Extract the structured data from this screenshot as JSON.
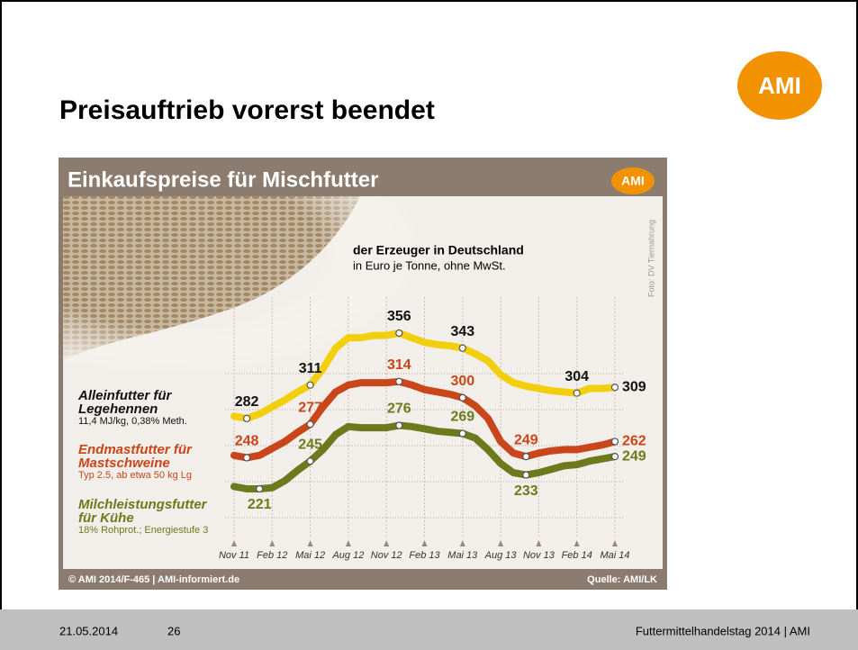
{
  "slide": {
    "title": "Preisauftrieb vorerst beendet",
    "logo": "AMI",
    "footer_date": "21.05.2014",
    "footer_page": "26",
    "footer_right": "Futtermittelhandelstag 2014 | AMI"
  },
  "chart_data": {
    "type": "line",
    "title": "Einkaufspreise für Mischfutter",
    "logo": "AMI",
    "subtitle": "der Erzeuger in Deutschland",
    "unit_note": "in Euro je Tonne, ohne MwSt.",
    "photo_credit": "Foto: DV Tiernahrung",
    "source_left": "© AMI 2014/F-465 | AMI-informiert.de",
    "source_right": "Quelle: AMI/LK",
    "categories": [
      "Nov 11",
      null,
      null,
      "Feb 12",
      null,
      null,
      "Mai 12",
      null,
      null,
      "Aug 12",
      null,
      null,
      "Nov 12",
      null,
      null,
      "Feb 13",
      null,
      null,
      "Mai 13",
      null,
      null,
      "Aug 13",
      null,
      null,
      "Nov 13",
      null,
      null,
      "Feb 14",
      null,
      null,
      "Mai 14"
    ],
    "series": [
      {
        "name": "Alleinfutter für Legehennen",
        "note": "11,4 MJ/kg, 0,38% Meth.",
        "color": "#f2cf0c",
        "values": [
          284,
          282,
          286,
          292,
          298,
          305,
          311,
          325,
          343,
          352,
          352,
          354,
          354,
          356,
          352,
          348,
          346,
          345,
          343,
          338,
          332,
          320,
          313,
          310,
          308,
          306,
          305,
          304,
          308,
          308,
          309
        ],
        "value_labels": [
          null,
          "282",
          null,
          null,
          null,
          null,
          "311",
          null,
          null,
          null,
          null,
          null,
          null,
          "356",
          null,
          null,
          null,
          null,
          "343",
          null,
          null,
          null,
          null,
          null,
          null,
          null,
          null,
          "304",
          null,
          null,
          "309"
        ]
      },
      {
        "name": "Endmastfutter für Mastschweine",
        "note": "Typ 2.5, ab etwa 50 kg Lg",
        "color": "#c8461a",
        "values": [
          250,
          248,
          250,
          256,
          262,
          270,
          277,
          292,
          305,
          311,
          313,
          313,
          313,
          314,
          311,
          307,
          305,
          303,
          300,
          293,
          282,
          262,
          252,
          249,
          252,
          254,
          255,
          255,
          257,
          259,
          262
        ],
        "value_labels": [
          null,
          "248",
          null,
          null,
          null,
          null,
          "277",
          null,
          null,
          null,
          null,
          null,
          null,
          "314",
          null,
          null,
          null,
          null,
          "300",
          null,
          null,
          null,
          null,
          "249",
          null,
          null,
          null,
          null,
          null,
          null,
          "262"
        ]
      },
      {
        "name": "Milchleistungsfutter für Kühe",
        "note": "18% Rohprot.; Energiestufe 3",
        "color": "#6b7a1c",
        "values": [
          223,
          221,
          221,
          222,
          228,
          237,
          245,
          255,
          268,
          275,
          274,
          274,
          274,
          276,
          275,
          273,
          271,
          270,
          269,
          265,
          255,
          243,
          235,
          233,
          235,
          238,
          241,
          242,
          245,
          247,
          249
        ],
        "value_labels": [
          null,
          null,
          "221",
          null,
          null,
          null,
          "245",
          null,
          null,
          null,
          null,
          null,
          null,
          "276",
          null,
          null,
          null,
          null,
          "269",
          null,
          null,
          null,
          null,
          "233",
          null,
          null,
          null,
          null,
          null,
          null,
          "249"
        ]
      }
    ]
  }
}
